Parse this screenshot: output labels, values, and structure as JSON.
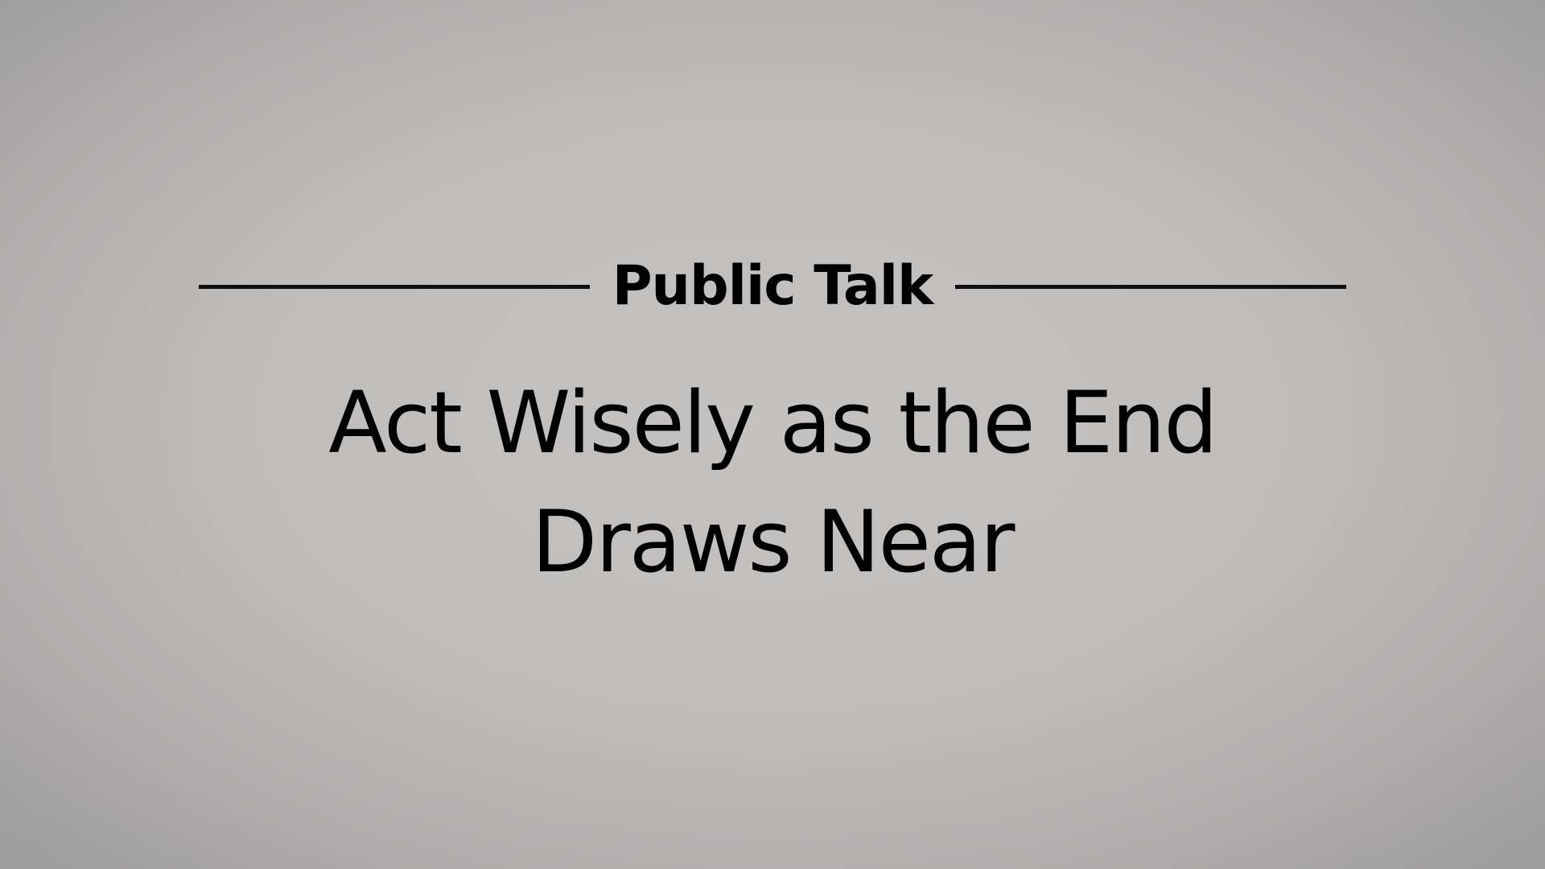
{
  "slide": {
    "label": "Public Talk",
    "title_lines": [
      "Act Wisely as the End",
      "Draws Near"
    ]
  },
  "colors": {
    "text": "#000000",
    "rule": "#0f0f0f",
    "background_center": "#c4c2c0",
    "background_edge": "#9d9c9c"
  }
}
